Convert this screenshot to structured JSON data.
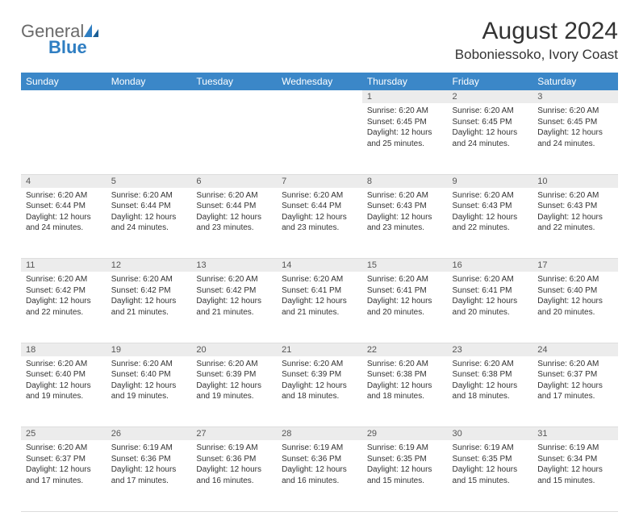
{
  "brand": {
    "general": "General",
    "blue": "Blue"
  },
  "title": "August 2024",
  "location": "Boboniessoko, Ivory Coast",
  "colors": {
    "header_bg": "#3b87c8",
    "header_fg": "#ffffff",
    "daynum_bg": "#ececec",
    "text": "#333333",
    "logo_gray": "#6a6a6a",
    "logo_blue": "#2f7ec2",
    "page_bg": "#ffffff",
    "row_border": "#dddddd"
  },
  "weekdays": [
    "Sunday",
    "Monday",
    "Tuesday",
    "Wednesday",
    "Thursday",
    "Friday",
    "Saturday"
  ],
  "weeks": [
    [
      {
        "n": "",
        "lines": []
      },
      {
        "n": "",
        "lines": []
      },
      {
        "n": "",
        "lines": []
      },
      {
        "n": "",
        "lines": []
      },
      {
        "n": "1",
        "lines": [
          "Sunrise: 6:20 AM",
          "Sunset: 6:45 PM",
          "Daylight: 12 hours and 25 minutes."
        ]
      },
      {
        "n": "2",
        "lines": [
          "Sunrise: 6:20 AM",
          "Sunset: 6:45 PM",
          "Daylight: 12 hours and 24 minutes."
        ]
      },
      {
        "n": "3",
        "lines": [
          "Sunrise: 6:20 AM",
          "Sunset: 6:45 PM",
          "Daylight: 12 hours and 24 minutes."
        ]
      }
    ],
    [
      {
        "n": "4",
        "lines": [
          "Sunrise: 6:20 AM",
          "Sunset: 6:44 PM",
          "Daylight: 12 hours and 24 minutes."
        ]
      },
      {
        "n": "5",
        "lines": [
          "Sunrise: 6:20 AM",
          "Sunset: 6:44 PM",
          "Daylight: 12 hours and 24 minutes."
        ]
      },
      {
        "n": "6",
        "lines": [
          "Sunrise: 6:20 AM",
          "Sunset: 6:44 PM",
          "Daylight: 12 hours and 23 minutes."
        ]
      },
      {
        "n": "7",
        "lines": [
          "Sunrise: 6:20 AM",
          "Sunset: 6:44 PM",
          "Daylight: 12 hours and 23 minutes."
        ]
      },
      {
        "n": "8",
        "lines": [
          "Sunrise: 6:20 AM",
          "Sunset: 6:43 PM",
          "Daylight: 12 hours and 23 minutes."
        ]
      },
      {
        "n": "9",
        "lines": [
          "Sunrise: 6:20 AM",
          "Sunset: 6:43 PM",
          "Daylight: 12 hours and 22 minutes."
        ]
      },
      {
        "n": "10",
        "lines": [
          "Sunrise: 6:20 AM",
          "Sunset: 6:43 PM",
          "Daylight: 12 hours and 22 minutes."
        ]
      }
    ],
    [
      {
        "n": "11",
        "lines": [
          "Sunrise: 6:20 AM",
          "Sunset: 6:42 PM",
          "Daylight: 12 hours and 22 minutes."
        ]
      },
      {
        "n": "12",
        "lines": [
          "Sunrise: 6:20 AM",
          "Sunset: 6:42 PM",
          "Daylight: 12 hours and 21 minutes."
        ]
      },
      {
        "n": "13",
        "lines": [
          "Sunrise: 6:20 AM",
          "Sunset: 6:42 PM",
          "Daylight: 12 hours and 21 minutes."
        ]
      },
      {
        "n": "14",
        "lines": [
          "Sunrise: 6:20 AM",
          "Sunset: 6:41 PM",
          "Daylight: 12 hours and 21 minutes."
        ]
      },
      {
        "n": "15",
        "lines": [
          "Sunrise: 6:20 AM",
          "Sunset: 6:41 PM",
          "Daylight: 12 hours and 20 minutes."
        ]
      },
      {
        "n": "16",
        "lines": [
          "Sunrise: 6:20 AM",
          "Sunset: 6:41 PM",
          "Daylight: 12 hours and 20 minutes."
        ]
      },
      {
        "n": "17",
        "lines": [
          "Sunrise: 6:20 AM",
          "Sunset: 6:40 PM",
          "Daylight: 12 hours and 20 minutes."
        ]
      }
    ],
    [
      {
        "n": "18",
        "lines": [
          "Sunrise: 6:20 AM",
          "Sunset: 6:40 PM",
          "Daylight: 12 hours and 19 minutes."
        ]
      },
      {
        "n": "19",
        "lines": [
          "Sunrise: 6:20 AM",
          "Sunset: 6:40 PM",
          "Daylight: 12 hours and 19 minutes."
        ]
      },
      {
        "n": "20",
        "lines": [
          "Sunrise: 6:20 AM",
          "Sunset: 6:39 PM",
          "Daylight: 12 hours and 19 minutes."
        ]
      },
      {
        "n": "21",
        "lines": [
          "Sunrise: 6:20 AM",
          "Sunset: 6:39 PM",
          "Daylight: 12 hours and 18 minutes."
        ]
      },
      {
        "n": "22",
        "lines": [
          "Sunrise: 6:20 AM",
          "Sunset: 6:38 PM",
          "Daylight: 12 hours and 18 minutes."
        ]
      },
      {
        "n": "23",
        "lines": [
          "Sunrise: 6:20 AM",
          "Sunset: 6:38 PM",
          "Daylight: 12 hours and 18 minutes."
        ]
      },
      {
        "n": "24",
        "lines": [
          "Sunrise: 6:20 AM",
          "Sunset: 6:37 PM",
          "Daylight: 12 hours and 17 minutes."
        ]
      }
    ],
    [
      {
        "n": "25",
        "lines": [
          "Sunrise: 6:20 AM",
          "Sunset: 6:37 PM",
          "Daylight: 12 hours and 17 minutes."
        ]
      },
      {
        "n": "26",
        "lines": [
          "Sunrise: 6:19 AM",
          "Sunset: 6:36 PM",
          "Daylight: 12 hours and 17 minutes."
        ]
      },
      {
        "n": "27",
        "lines": [
          "Sunrise: 6:19 AM",
          "Sunset: 6:36 PM",
          "Daylight: 12 hours and 16 minutes."
        ]
      },
      {
        "n": "28",
        "lines": [
          "Sunrise: 6:19 AM",
          "Sunset: 6:36 PM",
          "Daylight: 12 hours and 16 minutes."
        ]
      },
      {
        "n": "29",
        "lines": [
          "Sunrise: 6:19 AM",
          "Sunset: 6:35 PM",
          "Daylight: 12 hours and 15 minutes."
        ]
      },
      {
        "n": "30",
        "lines": [
          "Sunrise: 6:19 AM",
          "Sunset: 6:35 PM",
          "Daylight: 12 hours and 15 minutes."
        ]
      },
      {
        "n": "31",
        "lines": [
          "Sunrise: 6:19 AM",
          "Sunset: 6:34 PM",
          "Daylight: 12 hours and 15 minutes."
        ]
      }
    ]
  ]
}
